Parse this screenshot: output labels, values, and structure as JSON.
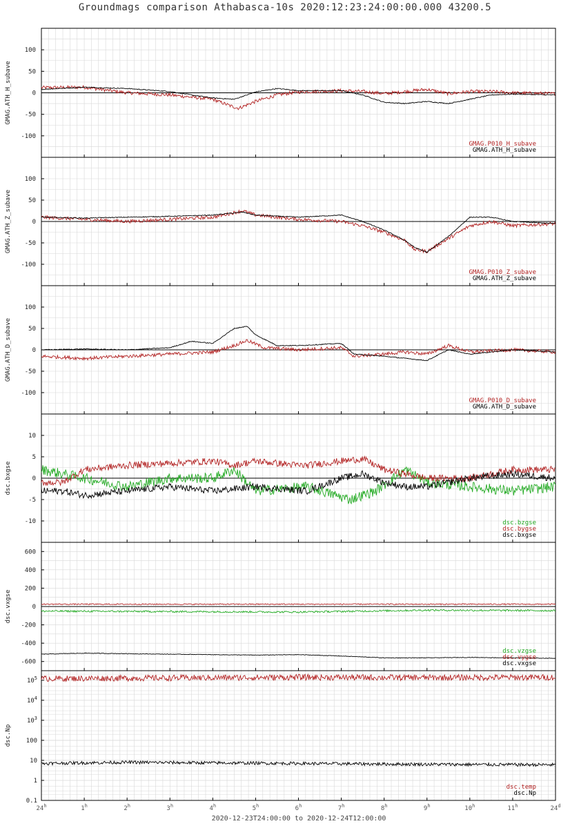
{
  "title": "Groundmags comparison Athabasca-10s 2020:12:23:24:00:00.000 43200.5",
  "x_range_label": "2020-12-23T24:00:00 to 2020-12-24T12:00:00",
  "colors": {
    "black": "#000000",
    "red": "#b22222",
    "green": "#22aa22",
    "grid": "#d8d8d8"
  },
  "chart_data": [
    {
      "type": "line",
      "ylabel": "GMAG.ATH_H_subave",
      "ylim": [
        -150,
        150
      ],
      "yticks": [
        100,
        50,
        0,
        -50,
        -100
      ],
      "legend": [
        "GMAG.P010_H_subave",
        "GMAG.ATH_H_subave"
      ],
      "series": [
        {
          "name": "GMAG.P010_H_subave",
          "color": "red",
          "noise": 4,
          "x": [
            0,
            1,
            2,
            3,
            3.5,
            4,
            4.4,
            4.6,
            5,
            5.5,
            6,
            7,
            7.5,
            8,
            8.5,
            9,
            9.5,
            10,
            10.5,
            11,
            12
          ],
          "y": [
            12,
            13,
            0,
            -5,
            -10,
            -15,
            -30,
            -36,
            -20,
            -5,
            2,
            5,
            3,
            -2,
            3,
            8,
            -2,
            3,
            3,
            0,
            -2
          ]
        },
        {
          "name": "GMAG.ATH_H_subave",
          "color": "black",
          "noise": 1,
          "x": [
            0,
            1,
            2,
            3,
            3.5,
            4,
            4.5,
            5,
            5.5,
            6,
            7,
            7.5,
            8,
            8.5,
            9,
            9.5,
            10,
            10.5,
            11,
            12
          ],
          "y": [
            8,
            13,
            10,
            3,
            -5,
            -12,
            -15,
            2,
            10,
            5,
            5,
            -5,
            -22,
            -25,
            -20,
            -25,
            -15,
            -5,
            -3,
            -5
          ]
        }
      ]
    },
    {
      "type": "line",
      "ylabel": "GMAG.ATH_Z_subave",
      "ylim": [
        -150,
        150
      ],
      "yticks": [
        100,
        50,
        0,
        -50,
        -100
      ],
      "legend": [
        "GMAG.P010_Z_subave",
        "GMAG.ATH_Z_subave"
      ],
      "series": [
        {
          "name": "GMAG.P010_Z_subave",
          "color": "red",
          "noise": 4,
          "x": [
            0,
            1,
            2,
            3,
            4,
            4.7,
            5,
            6,
            7,
            7.5,
            8,
            8.5,
            8.7,
            9,
            9.5,
            10,
            10.5,
            11,
            12
          ],
          "y": [
            10,
            5,
            0,
            5,
            10,
            25,
            15,
            5,
            0,
            -10,
            -25,
            -45,
            -65,
            -70,
            -40,
            -10,
            0,
            -10,
            -5
          ]
        },
        {
          "name": "GMAG.ATH_Z_subave",
          "color": "black",
          "noise": 1,
          "x": [
            0,
            1,
            2,
            3,
            4,
            4.7,
            5,
            6,
            7,
            7.5,
            8,
            8.5,
            8.7,
            9,
            9.5,
            10,
            10.5,
            11,
            12
          ],
          "y": [
            10,
            8,
            10,
            12,
            15,
            22,
            15,
            10,
            15,
            0,
            -20,
            -45,
            -60,
            -72,
            -35,
            10,
            10,
            0,
            -5
          ]
        }
      ]
    },
    {
      "type": "line",
      "ylabel": "GMAG.ATH_D_subave",
      "ylim": [
        -150,
        150
      ],
      "yticks": [
        100,
        50,
        0,
        -50,
        -100
      ],
      "legend": [
        "GMAG.P010_D_subave",
        "GMAG.ATH_D_subave"
      ],
      "series": [
        {
          "name": "GMAG.P010_D_subave",
          "color": "red",
          "noise": 4,
          "x": [
            0,
            1,
            2,
            3,
            4,
            4.5,
            4.8,
            5.2,
            6,
            7,
            7.3,
            8,
            8.5,
            9,
            9.5,
            10,
            11,
            12
          ],
          "y": [
            -15,
            -20,
            -15,
            -10,
            -5,
            10,
            22,
            5,
            0,
            5,
            -15,
            -10,
            -5,
            -10,
            10,
            -5,
            0,
            -5
          ]
        },
        {
          "name": "GMAG.ATH_D_subave",
          "color": "black",
          "noise": 1,
          "x": [
            0,
            1,
            2,
            3,
            3.5,
            4,
            4.5,
            4.8,
            5,
            5.5,
            6,
            7,
            7.3,
            8,
            8.5,
            9,
            9.5,
            10,
            11,
            12
          ],
          "y": [
            0,
            2,
            0,
            5,
            20,
            15,
            50,
            55,
            35,
            10,
            10,
            15,
            -10,
            -15,
            -20,
            -25,
            0,
            -10,
            0,
            -5
          ]
        }
      ]
    },
    {
      "type": "line",
      "ylabel": "dsc.bxgse",
      "ylim": [
        -15,
        15
      ],
      "yticks": [
        10,
        5,
        0,
        -5,
        -10
      ],
      "legend": [
        "dsc.bzgse",
        "dsc.bygse",
        "dsc.bxgse"
      ],
      "series": [
        {
          "name": "dsc.bzgse",
          "color": "green",
          "noise": 1.2,
          "x": [
            0,
            1,
            2,
            3,
            4,
            4.5,
            5,
            6.2,
            7.2,
            7.8,
            8.5,
            9,
            10,
            11,
            12
          ],
          "y": [
            2,
            0,
            -2,
            0,
            0,
            2,
            -3,
            -2,
            -5,
            -3,
            2,
            -1,
            -2,
            -3,
            -2
          ]
        },
        {
          "name": "dsc.bygse",
          "color": "red",
          "noise": 0.8,
          "x": [
            0,
            0.5,
            1,
            2,
            3,
            4,
            4.5,
            5,
            5.5,
            6,
            6.2,
            7,
            7.5,
            8,
            8.5,
            9,
            10,
            11,
            12
          ],
          "y": [
            -1,
            -1,
            2,
            3,
            3.5,
            4,
            3,
            4,
            3.5,
            3,
            3,
            4,
            4.5,
            2,
            1,
            0,
            0,
            2,
            2
          ]
        },
        {
          "name": "dsc.bxgse",
          "color": "black",
          "noise": 0.8,
          "x": [
            0,
            0.5,
            1,
            2,
            3,
            4,
            5,
            6.2,
            7,
            7.5,
            8,
            8.5,
            9,
            10,
            11,
            12
          ],
          "y": [
            -3,
            -3,
            -4,
            -3,
            -2,
            -3,
            -2,
            -3,
            0,
            1,
            -1,
            -2,
            -2,
            0,
            1,
            0
          ]
        }
      ]
    },
    {
      "type": "line",
      "ylabel": "dsc.vxgse",
      "ylim": [
        -700,
        700
      ],
      "yticks": [
        600,
        400,
        200,
        0,
        -200,
        -400,
        -600
      ],
      "legend": [
        "dsc.vzgse",
        "dsc.vygse",
        "dsc.vxgse"
      ],
      "series": [
        {
          "name": "dsc.vzgse",
          "color": "green",
          "noise": 10,
          "x": [
            0,
            3,
            6,
            9,
            12
          ],
          "y": [
            -50,
            -55,
            -60,
            -40,
            -45
          ]
        },
        {
          "name": "dsc.vygse",
          "color": "red",
          "noise": 6,
          "x": [
            0,
            12
          ],
          "y": [
            25,
            25
          ]
        },
        {
          "name": "dsc.vxgse",
          "color": "black",
          "noise": 3,
          "x": [
            0,
            1,
            2,
            3,
            4,
            5,
            6,
            7,
            8,
            9,
            10,
            11,
            12
          ],
          "y": [
            -520,
            -510,
            -515,
            -520,
            -525,
            -530,
            -525,
            -540,
            -560,
            -560,
            -555,
            -560,
            -565
          ]
        }
      ]
    },
    {
      "type": "line",
      "ylabel": "dsc.Np",
      "yscale": "log",
      "ylim": [
        0.1,
        300000
      ],
      "yticks": [
        {
          "v": 100000,
          "base": "10",
          "exp": "5"
        },
        {
          "v": 10000,
          "base": "10",
          "exp": "4"
        },
        {
          "v": 1000,
          "base": "10",
          "exp": "3"
        },
        {
          "v": 100,
          "base": "100",
          "exp": ""
        },
        {
          "v": 10,
          "base": "10",
          "exp": ""
        },
        {
          "v": 1,
          "base": "1",
          "exp": ""
        },
        {
          "v": 0.1,
          "base": "0.1",
          "exp": ""
        }
      ],
      "legend": [
        "dsc.temp",
        "dsc.Np"
      ],
      "series": [
        {
          "name": "dsc.temp",
          "color": "red",
          "noise": 0.15,
          "x": [
            0,
            3,
            6,
            9,
            12
          ],
          "y": [
            120000,
            130000,
            140000,
            135000,
            140000
          ]
        },
        {
          "name": "dsc.Np",
          "color": "black",
          "noise": 0.08,
          "x": [
            0,
            2,
            4,
            6,
            8,
            10,
            12
          ],
          "y": [
            7,
            8,
            7.5,
            7,
            6.5,
            6.2,
            6
          ]
        }
      ]
    }
  ],
  "xaxis": {
    "xlim": [
      0,
      12
    ],
    "ticks": [
      {
        "v": 0,
        "label": "24",
        "sup": "h"
      },
      {
        "v": 1,
        "label": "1",
        "sup": "h"
      },
      {
        "v": 2,
        "label": "2",
        "sup": "h"
      },
      {
        "v": 3,
        "label": "3",
        "sup": "h"
      },
      {
        "v": 4,
        "label": "4",
        "sup": "h"
      },
      {
        "v": 5,
        "label": "5",
        "sup": "h"
      },
      {
        "v": 6,
        "label": "6",
        "sup": "h"
      },
      {
        "v": 7,
        "label": "7",
        "sup": "h"
      },
      {
        "v": 8,
        "label": "8",
        "sup": "h"
      },
      {
        "v": 9,
        "label": "9",
        "sup": "h"
      },
      {
        "v": 10,
        "label": "10",
        "sup": "h"
      },
      {
        "v": 11,
        "label": "11",
        "sup": "h"
      },
      {
        "v": 12,
        "label": "24",
        "sup": "d"
      }
    ]
  }
}
